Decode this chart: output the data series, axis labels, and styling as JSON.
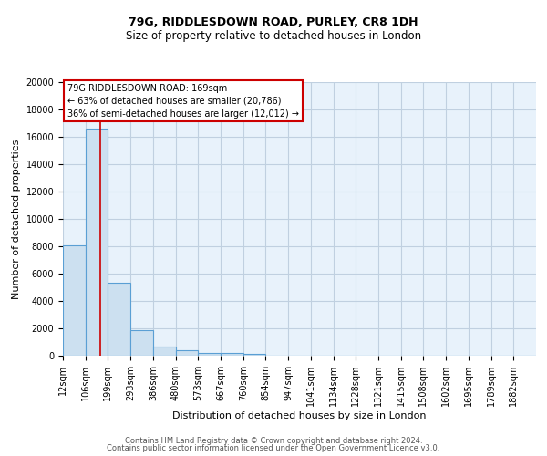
{
  "title1": "79G, RIDDLESDOWN ROAD, PURLEY, CR8 1DH",
  "title2": "Size of property relative to detached houses in London",
  "xlabel": "Distribution of detached houses by size in London",
  "ylabel": "Number of detached properties",
  "footer1": "Contains HM Land Registry data © Crown copyright and database right 2024.",
  "footer2": "Contains public sector information licensed under the Open Government Licence v3.0.",
  "bin_labels": [
    "12sqm",
    "106sqm",
    "199sqm",
    "293sqm",
    "386sqm",
    "480sqm",
    "573sqm",
    "667sqm",
    "760sqm",
    "854sqm",
    "947sqm",
    "1041sqm",
    "1134sqm",
    "1228sqm",
    "1321sqm",
    "1415sqm",
    "1508sqm",
    "1602sqm",
    "1695sqm",
    "1789sqm",
    "1882sqm"
  ],
  "bar_values": [
    8050,
    16600,
    5350,
    1850,
    700,
    380,
    220,
    170,
    130,
    0,
    0,
    0,
    0,
    0,
    0,
    0,
    0,
    0,
    0,
    0,
    0
  ],
  "bar_color": "#cce0f0",
  "bar_edge_color": "#5a9fd4",
  "bin_edges_sqm": [
    12,
    106,
    199,
    293,
    386,
    480,
    573,
    667,
    760,
    854,
    947,
    1041,
    1134,
    1228,
    1321,
    1415,
    1508,
    1602,
    1695,
    1789,
    1882
  ],
  "property_size": 169,
  "annotation_text1": "79G RIDDLESDOWN ROAD: 169sqm",
  "annotation_text2": "← 63% of detached houses are smaller (20,786)",
  "annotation_text3": "36% of semi-detached houses are larger (12,012) →",
  "annotation_box_color": "#ffffff",
  "annotation_border_color": "#cc0000",
  "ylim": [
    0,
    20000
  ],
  "yticks": [
    0,
    2000,
    4000,
    6000,
    8000,
    10000,
    12000,
    14000,
    16000,
    18000,
    20000
  ],
  "background_color": "#e8f2fb",
  "grid_color": "#c0d0e0",
  "title1_fontsize": 9,
  "title2_fontsize": 8.5,
  "xlabel_fontsize": 8,
  "ylabel_fontsize": 8,
  "tick_fontsize": 7,
  "footer_fontsize": 6,
  "ann_fontsize": 7
}
